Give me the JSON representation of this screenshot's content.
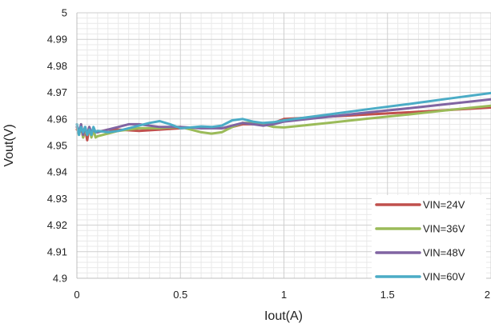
{
  "chart_data": {
    "type": "line",
    "xlabel": "Iout(A)",
    "ylabel": "Vout(V)",
    "xlim": [
      0,
      2
    ],
    "ylim": [
      4.9,
      5
    ],
    "x_ticks": [
      "0",
      "0.5",
      "1",
      "1.5",
      "2"
    ],
    "y_ticks": [
      "4.9",
      "4.91",
      "4.92",
      "4.93",
      "4.94",
      "4.95",
      "4.96",
      "4.97",
      "4.98",
      "4.99",
      "5"
    ],
    "grid": true,
    "legend_position": "bottom-right",
    "series": [
      {
        "name": "VIN=24V",
        "color": "#c0504d",
        "x": [
          0,
          0.01,
          0.02,
          0.03,
          0.04,
          0.05,
          0.06,
          0.07,
          0.08,
          0.09,
          0.1,
          0.15,
          0.2,
          0.3,
          0.4,
          0.5,
          0.6,
          0.7,
          0.75,
          0.8,
          0.85,
          0.9,
          0.95,
          1,
          1.2,
          1.4,
          1.6,
          1.8,
          2
        ],
        "y": [
          4.956,
          4.955,
          4.957,
          4.953,
          4.956,
          4.952,
          4.957,
          4.954,
          4.956,
          4.955,
          4.955,
          4.956,
          4.956,
          4.9555,
          4.956,
          4.9565,
          4.957,
          4.9565,
          4.957,
          4.958,
          4.958,
          4.958,
          4.9585,
          4.96,
          4.9608,
          4.9617,
          4.9625,
          4.9634,
          4.9643
        ]
      },
      {
        "name": "VIN=36V",
        "color": "#9bbb59",
        "x": [
          0,
          0.01,
          0.02,
          0.03,
          0.04,
          0.05,
          0.06,
          0.07,
          0.08,
          0.09,
          0.1,
          0.15,
          0.2,
          0.3,
          0.4,
          0.5,
          0.55,
          0.6,
          0.65,
          0.7,
          0.75,
          0.8,
          0.85,
          0.9,
          0.95,
          1,
          1.2,
          1.4,
          1.6,
          1.8,
          2
        ],
        "y": [
          4.957,
          4.954,
          4.958,
          4.953,
          4.956,
          4.954,
          4.957,
          4.953,
          4.956,
          4.953,
          4.9535,
          4.9545,
          4.9555,
          4.9565,
          4.9565,
          4.957,
          4.956,
          4.955,
          4.9545,
          4.955,
          4.957,
          4.9585,
          4.9585,
          4.958,
          4.957,
          4.9568,
          4.9584,
          4.9601,
          4.9617,
          4.9634,
          4.965
        ]
      },
      {
        "name": "VIN=48V",
        "color": "#8064a2",
        "x": [
          0,
          0.01,
          0.02,
          0.03,
          0.04,
          0.05,
          0.06,
          0.07,
          0.08,
          0.09,
          0.1,
          0.15,
          0.2,
          0.25,
          0.3,
          0.35,
          0.4,
          0.5,
          0.6,
          0.7,
          0.75,
          0.8,
          0.85,
          0.9,
          0.95,
          1,
          1.2,
          1.4,
          1.6,
          1.8,
          2
        ],
        "y": [
          4.957,
          4.955,
          4.958,
          4.954,
          4.957,
          4.954,
          4.957,
          4.955,
          4.956,
          4.955,
          4.955,
          4.956,
          4.957,
          4.958,
          4.958,
          4.9575,
          4.957,
          4.957,
          4.9565,
          4.9565,
          4.9575,
          4.9585,
          4.958,
          4.9575,
          4.958,
          4.959,
          4.9607,
          4.9624,
          4.964,
          4.9657,
          4.9674
        ]
      },
      {
        "name": "VIN=60V",
        "color": "#4bacc6",
        "x": [
          0,
          0.01,
          0.02,
          0.03,
          0.04,
          0.05,
          0.06,
          0.07,
          0.08,
          0.09,
          0.1,
          0.15,
          0.2,
          0.25,
          0.3,
          0.35,
          0.4,
          0.45,
          0.5,
          0.55,
          0.6,
          0.65,
          0.7,
          0.75,
          0.8,
          0.85,
          0.9,
          0.95,
          1,
          1.2,
          1.4,
          1.6,
          1.8,
          2
        ],
        "y": [
          4.958,
          4.954,
          4.957,
          4.955,
          4.957,
          4.954,
          4.956,
          4.954,
          4.957,
          4.955,
          4.9555,
          4.955,
          4.9555,
          4.9565,
          4.9575,
          4.9585,
          4.9592,
          4.958,
          4.9565,
          4.9568,
          4.9572,
          4.957,
          4.9575,
          4.9595,
          4.96,
          4.959,
          4.9585,
          4.9588,
          4.9595,
          4.9615,
          4.9636,
          4.9656,
          4.9677,
          4.9698
        ]
      }
    ]
  }
}
